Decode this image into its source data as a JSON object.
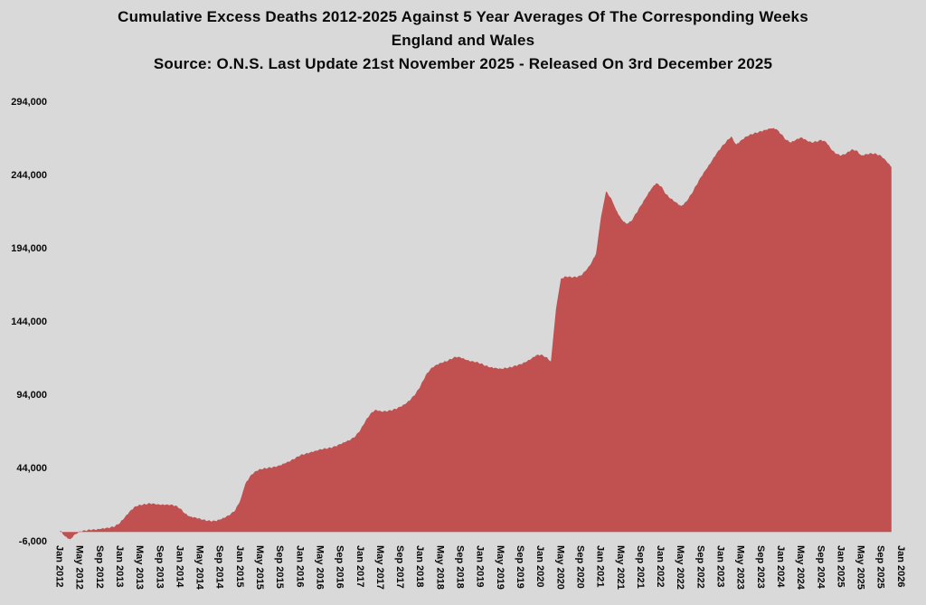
{
  "chart_data": {
    "type": "area",
    "title_lines": [
      "Cumulative Excess Deaths 2012-2025 Against 5 Year Averages Of The Corresponding Weeks",
      "England and Wales",
      "Source: O.N.S. Last Update 21st November 2025 - Released On 3rd December 2025"
    ],
    "series_name": "Cumulative excess deaths vs 5-year average",
    "area_color": "#C05150",
    "background_color": "#D9D9D9",
    "text_color": "#0a0a0a",
    "grid": "off",
    "legend": "none",
    "y_min": -6000,
    "y_max": 294000,
    "y_ticks": [
      {
        "value": 294000,
        "label": "294,000"
      },
      {
        "value": 244000,
        "label": "244,000"
      },
      {
        "value": 194000,
        "label": "194,000"
      },
      {
        "value": 144000,
        "label": "144,000"
      },
      {
        "value": 94000,
        "label": "94,000"
      },
      {
        "value": 44000,
        "label": "44,000"
      },
      {
        "value": -6000,
        "label": "-6,000"
      }
    ],
    "x_start_month": "Jan 2012",
    "x_tick_interval_months": 4,
    "x_tick_labels": [
      "Jan 2012",
      "May 2012",
      "Sep 2012",
      "Jan 2013",
      "May 2013",
      "Sep 2013",
      "Jan 2014",
      "May 2014",
      "Sep 2014",
      "Jan 2015",
      "May 2015",
      "Sep 2015",
      "Jan 2016",
      "May 2016",
      "Sep 2016",
      "Jan 2017",
      "May 2017",
      "Sep 2017",
      "Jan 2018",
      "May 2018",
      "Sep 2018",
      "Jan 2019",
      "May 2019",
      "Sep 2019",
      "Jan 2020",
      "May 2020",
      "Sep 2020",
      "Jan 2021",
      "May 2021",
      "Sep 2021",
      "Jan 2022",
      "May 2022",
      "Sep 2022",
      "Jan 2023",
      "May 2023",
      "Sep 2023",
      "Jan 2024",
      "May 2024",
      "Sep 2024",
      "Jan 2025",
      "May 2025",
      "Sep 2025",
      "Jan 2026"
    ],
    "last_data_month": "Nov 2025",
    "monthly_values": [
      1000,
      -3000,
      -5000,
      -1500,
      500,
      1000,
      1500,
      1500,
      2000,
      2500,
      3000,
      4000,
      6500,
      10500,
      14500,
      17500,
      18500,
      19000,
      19500,
      19000,
      18500,
      18500,
      18500,
      18000,
      16000,
      12500,
      10500,
      10000,
      9000,
      8000,
      7500,
      7500,
      8500,
      10000,
      12000,
      15000,
      22000,
      33000,
      38500,
      41500,
      43000,
      43500,
      44000,
      44500,
      45500,
      47000,
      48500,
      50500,
      52500,
      53500,
      54500,
      55500,
      56500,
      57000,
      57500,
      58500,
      60000,
      61500,
      63000,
      65500,
      70000,
      76000,
      81000,
      83500,
      82500,
      82500,
      83000,
      84000,
      85500,
      87500,
      90500,
      94500,
      100000,
      107000,
      111500,
      114000,
      115500,
      116500,
      118000,
      119500,
      119000,
      117500,
      116500,
      116000,
      115000,
      113500,
      112500,
      112000,
      111500,
      112000,
      112500,
      113500,
      114500,
      116000,
      118000,
      120500,
      121000,
      119500,
      116500,
      152000,
      173000,
      174500,
      174000,
      174000,
      175000,
      178500,
      183000,
      190000,
      215000,
      232500,
      228000,
      220000,
      214000,
      210500,
      212000,
      217500,
      223000,
      228500,
      234000,
      238000,
      236000,
      230500,
      227500,
      225000,
      222500,
      225500,
      230500,
      236500,
      242500,
      247500,
      252500,
      258000,
      262500,
      266500,
      270000,
      264500,
      267500,
      270000,
      271500,
      272500,
      273500,
      274500,
      275500,
      275000,
      271500,
      267500,
      266000,
      268000,
      269500,
      267500,
      266000,
      266500,
      267500,
      266000,
      261000,
      258000,
      257000,
      258500,
      261000,
      260500,
      257000,
      258000,
      258500,
      258000,
      256500,
      253000,
      249000
    ]
  }
}
